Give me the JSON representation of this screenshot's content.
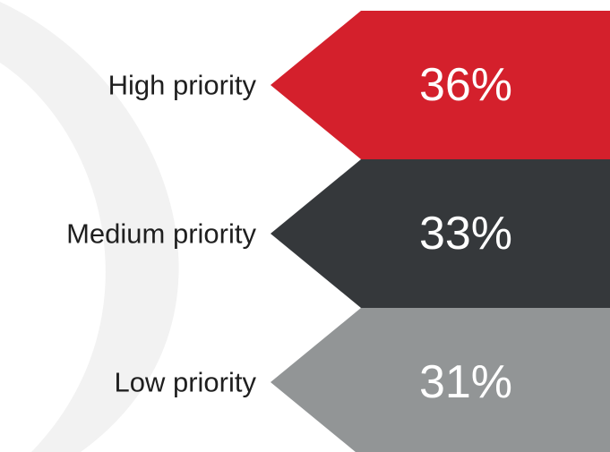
{
  "chart_data": {
    "type": "bar",
    "categories": [
      "High priority",
      "Medium priority",
      "Low priority"
    ],
    "values": [
      36,
      33,
      31
    ],
    "value_labels": [
      "36%",
      "33%",
      "31%"
    ],
    "unit": "%",
    "colors": [
      "#d4202c",
      "#35383b",
      "#929596"
    ],
    "background_arc_color": "#f2f2f2",
    "label_color": "#1f1f1f",
    "value_text_color": "#ffffff",
    "legend": "none",
    "grid": false
  }
}
